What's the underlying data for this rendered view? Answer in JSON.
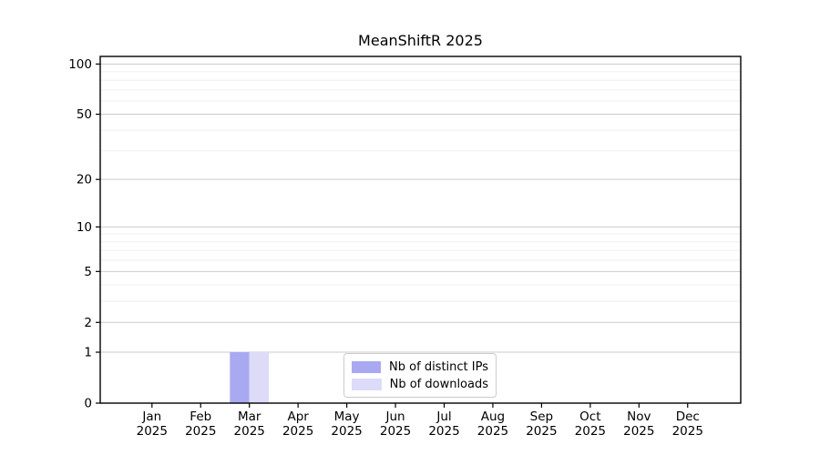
{
  "chart_data": {
    "type": "bar",
    "title": "MeanShiftR 2025",
    "xlabel": "",
    "ylabel": "",
    "yscale": "log1p",
    "ylim": [
      0,
      111
    ],
    "grid": "horizontal",
    "legend_position": "inside-bottom-center",
    "categories": [
      "Jan 2025",
      "Feb 2025",
      "Mar 2025",
      "Apr 2025",
      "May 2025",
      "Jun 2025",
      "Jul 2025",
      "Aug 2025",
      "Sep 2025",
      "Oct 2025",
      "Nov 2025",
      "Dec 2025"
    ],
    "x_tick_labels": [
      [
        "Jan",
        "2025"
      ],
      [
        "Feb",
        "2025"
      ],
      [
        "Mar",
        "2025"
      ],
      [
        "Apr",
        "2025"
      ],
      [
        "May",
        "2025"
      ],
      [
        "Jun",
        "2025"
      ],
      [
        "Jul",
        "2025"
      ],
      [
        "Aug",
        "2025"
      ],
      [
        "Sep",
        "2025"
      ],
      [
        "Oct",
        "2025"
      ],
      [
        "Nov",
        "2025"
      ],
      [
        "Dec",
        "2025"
      ]
    ],
    "y_major_ticks": [
      0,
      1,
      2,
      5,
      10,
      20,
      50,
      100
    ],
    "y_minor_gridlines": [
      3,
      4,
      6,
      7,
      8,
      9,
      30,
      40,
      60,
      70,
      80,
      90
    ],
    "series": [
      {
        "name": "Nb of distinct IPs",
        "color": "#a9a9f2",
        "values": [
          0,
          0,
          1,
          0,
          0,
          0,
          0,
          0,
          0,
          0,
          0,
          0
        ]
      },
      {
        "name": "Nb of downloads",
        "color": "#dcdcf8",
        "values": [
          0,
          0,
          1,
          0,
          0,
          0,
          0,
          0,
          0,
          0,
          0,
          0
        ]
      }
    ],
    "colors": {
      "major_grid": "#cbcbcb",
      "minor_grid": "#efefef",
      "axis": "#000000",
      "tick_label": "#000000"
    }
  }
}
